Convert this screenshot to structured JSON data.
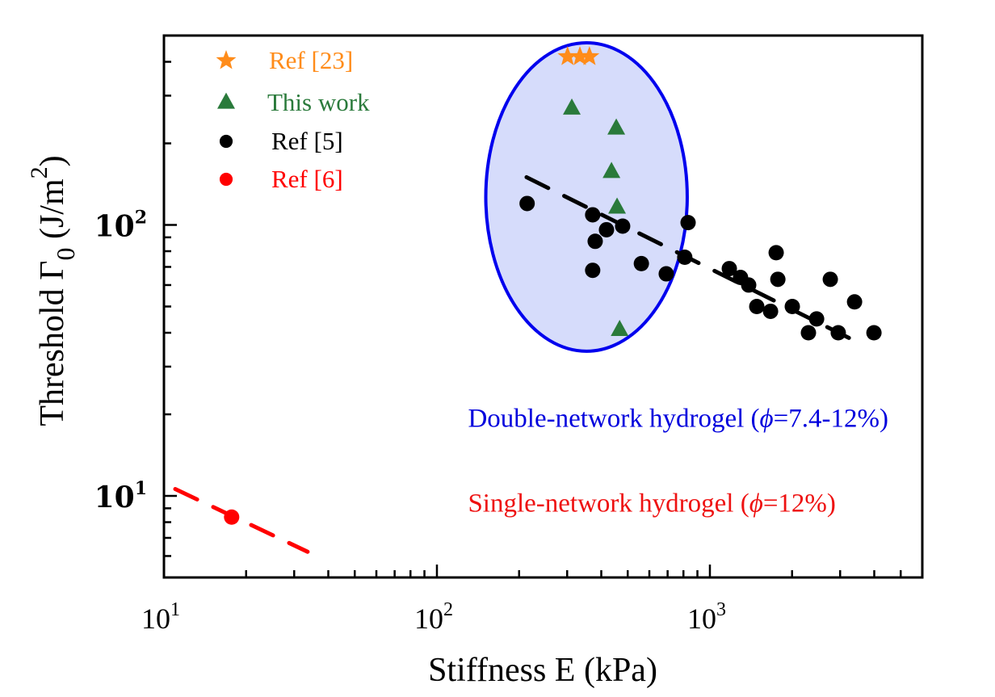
{
  "chart_data": {
    "type": "scatter",
    "title": "",
    "xlabel": "Stiffness E (kPa)",
    "ylabel_parts": {
      "main": "Threshold Γ",
      "sub": "0",
      "unit_open": " (J/m",
      "sup": "2",
      "unit_close": ")"
    },
    "xscale": "log",
    "yscale": "log",
    "xlim": [
      10,
      6000
    ],
    "ylim": [
      5,
      500
    ],
    "x_major_ticks": [
      {
        "value": 10,
        "base": "10",
        "exp": "1"
      },
      {
        "value": 100,
        "base": "10",
        "exp": "2"
      },
      {
        "value": 1000,
        "base": "10",
        "exp": "3"
      }
    ],
    "y_major_ticks": [
      {
        "value": 10,
        "base": "10",
        "exp": "1"
      },
      {
        "value": 100,
        "base": "10",
        "exp": "2"
      }
    ],
    "grid": false,
    "legend_position": "top-left",
    "series": [
      {
        "name": "Ref [23]",
        "marker": "star",
        "color": "#ff8c1a",
        "points": [
          [
            301,
            418
          ],
          [
            334,
            418
          ],
          [
            362,
            418
          ]
        ]
      },
      {
        "name": "This work",
        "marker": "triangle",
        "color": "#2a7a3b",
        "points": [
          [
            312,
            269
          ],
          [
            454,
            227
          ],
          [
            436,
            157
          ],
          [
            457,
            116
          ],
          [
            467,
            41
          ]
        ]
      },
      {
        "name": "Ref [5]",
        "marker": "circle",
        "color": "#000000",
        "points": [
          [
            214,
            120
          ],
          [
            372,
            109
          ],
          [
            418,
            96
          ],
          [
            479,
            99
          ],
          [
            380,
            87
          ],
          [
            372,
            68
          ],
          [
            561,
            72
          ],
          [
            692,
            66
          ],
          [
            809,
            76
          ],
          [
            832,
            102
          ],
          [
            1178,
            69
          ],
          [
            1295,
            64
          ],
          [
            1387,
            60
          ],
          [
            1749,
            79
          ],
          [
            1774,
            63
          ],
          [
            1485,
            50
          ],
          [
            1668,
            48
          ],
          [
            2004,
            50
          ],
          [
            2761,
            63
          ],
          [
            3388,
            52
          ],
          [
            2460,
            45
          ],
          [
            2296,
            40
          ],
          [
            2953,
            40
          ],
          [
            3990,
            40
          ]
        ]
      },
      {
        "name": "Ref [6]",
        "marker": "circle",
        "color": "#ff0000",
        "points": [
          [
            17.7,
            8.35
          ]
        ]
      }
    ],
    "trend_lines": [
      {
        "name": "double-network-trend",
        "style": "dashed",
        "color": "#000000",
        "from": [
          213,
          150
        ],
        "to": [
          3673,
          35.9
        ]
      },
      {
        "name": "single-network-trend",
        "style": "dashed",
        "color": "#ff0000",
        "from": [
          11.0,
          10.6
        ],
        "to": [
          33.6,
          6.22
        ]
      }
    ],
    "regions": [
      {
        "name": "double-network-ellipse",
        "shape": "ellipse",
        "x_extent": [
          151,
          826
        ],
        "y_extent": [
          34.2,
          470
        ],
        "fill": "#d6dcfb",
        "stroke": "#0000ee"
      }
    ],
    "annotations": [
      {
        "name": "double-network-annotation",
        "prefix": "Double-network hydrogel (",
        "phi": "ϕ",
        "suffix": "=7.4-12%)",
        "color": "#0000dd",
        "at": [
          95,
          19.5
        ]
      },
      {
        "name": "single-network-annotation",
        "prefix": "Single-network hydrogel (",
        "phi": "ϕ",
        "suffix": "=12%)",
        "color": "#ee1111",
        "at": [
          95,
          9.5
        ]
      }
    ]
  }
}
